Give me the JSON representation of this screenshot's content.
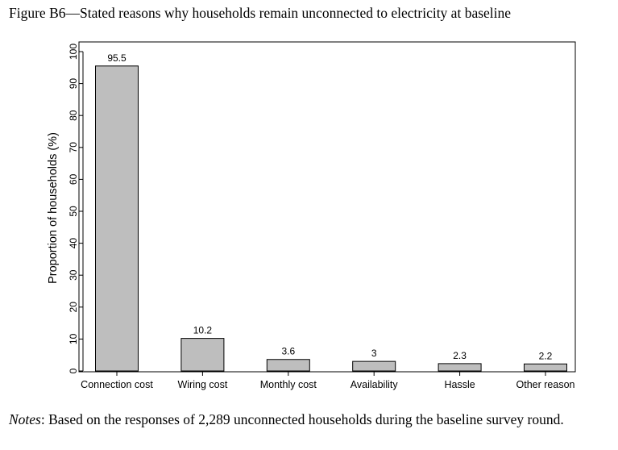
{
  "title": "Figure B6—Stated reasons why households remain unconnected to electricity at baseline",
  "notes": {
    "label": "Notes",
    "text": ": Based on the responses of 2,289 unconnected households during the baseline survey round."
  },
  "chart_data": {
    "type": "bar",
    "categories": [
      "Connection cost",
      "Wiring cost",
      "Monthly cost",
      "Availability",
      "Hassle",
      "Other reason"
    ],
    "values": [
      95.5,
      10.2,
      3.6,
      3,
      2.3,
      2.2
    ],
    "data_labels": [
      "95.5",
      "10.2",
      "3.6",
      "3",
      "2.3",
      "2.2"
    ],
    "ylabel": "Proportion of households (%)",
    "xlabel": "",
    "ylim": [
      0,
      100
    ],
    "yticks": [
      0,
      10,
      20,
      30,
      40,
      50,
      60,
      70,
      80,
      90,
      100
    ],
    "grid": false,
    "bar_color": "#bebebe",
    "bar_edge_color": "#000000"
  }
}
